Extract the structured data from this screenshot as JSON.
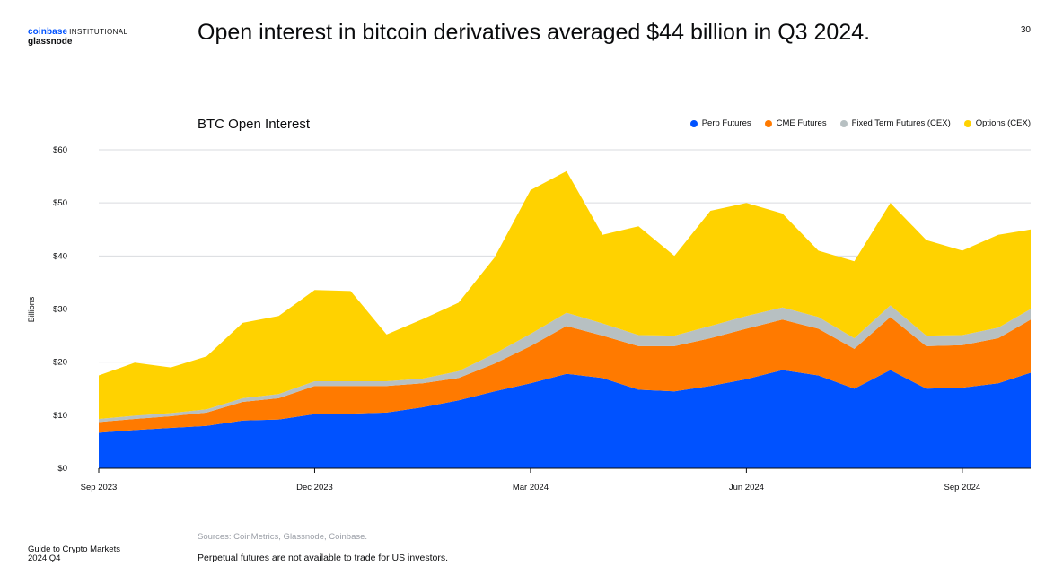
{
  "brand": {
    "coinbase": "coinbase",
    "institutional": "INSTITUTIONAL",
    "glassnode": "glassnode"
  },
  "headline": "Open interest in bitcoin derivatives averaged $44 billion in Q3 2024.",
  "page_number": "30",
  "footer": {
    "sources": "Sources: CoinMetrics, Glassnode, Coinbase.",
    "note": "Perpetual futures are not available to trade for US investors.",
    "guide_line1": "Guide to Crypto Markets",
    "guide_line2": "2024 Q4"
  },
  "colors": {
    "perp": "#0052ff",
    "cme": "#ff7a00",
    "fixed": "#b7c0c2",
    "options": "#ffd200",
    "grid": "#d9dbdf"
  },
  "chart_data": {
    "type": "area",
    "stacked": true,
    "title": "BTC Open Interest",
    "ylabel": "Billions",
    "xlabel": "",
    "ylim": [
      0,
      60
    ],
    "yticks": [
      0,
      10,
      20,
      30,
      40,
      50,
      60
    ],
    "ytick_labels": [
      "$0",
      "$10",
      "$20",
      "$30",
      "$40",
      "$50",
      "$60"
    ],
    "x_ticks": [
      {
        "label": "Sep 2023",
        "t": 0
      },
      {
        "label": "Dec 2023",
        "t": 3
      },
      {
        "label": "Mar 2024",
        "t": 6
      },
      {
        "label": "Jun 2024",
        "t": 9
      },
      {
        "label": "Sep 2024",
        "t": 12
      }
    ],
    "x_unit": "months since Sep 2023",
    "x_range": [
      0,
      12.95
    ],
    "x": [
      0,
      0.5,
      1,
      1.5,
      2,
      2.5,
      3,
      3.5,
      4,
      4.5,
      5,
      5.5,
      6,
      6.5,
      7,
      7.5,
      8,
      8.5,
      9,
      9.5,
      10,
      10.5,
      11,
      11.5,
      12,
      12.5,
      12.95
    ],
    "series": [
      {
        "name": "Perp Futures",
        "color_key": "perp",
        "values": [
          6.7,
          7.2,
          7.6,
          8.0,
          9.0,
          9.2,
          10.2,
          10.3,
          10.5,
          11.5,
          12.8,
          14.5,
          16.0,
          17.8,
          17.0,
          14.8,
          14.5,
          15.5,
          16.8,
          18.5,
          17.5,
          15.0,
          18.5,
          15.0,
          15.2,
          16.0,
          18.0
        ]
      },
      {
        "name": "CME Futures",
        "color_key": "cme",
        "values": [
          2.0,
          2.1,
          2.2,
          2.5,
          3.5,
          4.0,
          5.3,
          5.2,
          5.0,
          4.5,
          4.2,
          5.2,
          7.0,
          9.0,
          8.0,
          8.2,
          8.5,
          9.0,
          9.5,
          9.5,
          8.8,
          7.5,
          10.0,
          8.0,
          8.0,
          8.5,
          10.0
        ]
      },
      {
        "name": "Fixed Term Futures (CEX)",
        "color_key": "fixed",
        "values": [
          0.6,
          0.6,
          0.6,
          0.6,
          0.7,
          0.8,
          0.9,
          0.9,
          0.9,
          0.9,
          1.3,
          1.9,
          2.3,
          2.5,
          2.3,
          2.1,
          2.0,
          2.3,
          2.4,
          2.3,
          2.2,
          2.0,
          2.2,
          2.0,
          1.9,
          2.0,
          2.0
        ]
      },
      {
        "name": "Options (CEX)",
        "color_key": "options",
        "values": [
          8.2,
          10.0,
          8.6,
          10.0,
          14.2,
          14.7,
          17.2,
          17.0,
          8.8,
          11.2,
          12.9,
          18.1,
          27.1,
          26.7,
          16.7,
          20.5,
          15.0,
          21.7,
          21.3,
          17.7,
          12.5,
          14.5,
          19.3,
          18.0,
          15.9,
          17.5,
          15.0
        ]
      }
    ]
  }
}
